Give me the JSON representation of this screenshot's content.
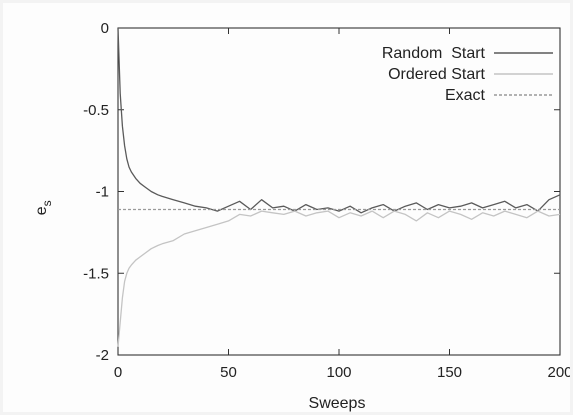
{
  "chart_data": {
    "type": "line",
    "title": "",
    "xlabel": "Sweeps",
    "ylabel": "e",
    "ylabel_subscript": "s",
    "xlim": [
      0,
      200
    ],
    "ylim": [
      -2,
      0
    ],
    "xticks": [
      0,
      50,
      100,
      150,
      200
    ],
    "xtick_labels": [
      "0",
      "50",
      "100",
      "150",
      "200"
    ],
    "yticks": [
      -2,
      -1.5,
      -1,
      -0.5,
      0
    ],
    "ytick_labels": [
      "-2",
      "-1.5",
      "-1",
      "-0.5",
      "0"
    ],
    "grid": false,
    "legend_position": "top-right",
    "series": [
      {
        "name": "Random  Start",
        "color": "#5a5a5a",
        "style": "solid",
        "x": [
          0,
          1,
          2,
          3,
          4,
          5,
          6,
          8,
          10,
          12,
          15,
          18,
          20,
          25,
          30,
          35,
          40,
          45,
          50,
          55,
          60,
          65,
          70,
          75,
          80,
          85,
          90,
          95,
          100,
          105,
          110,
          115,
          120,
          125,
          130,
          135,
          140,
          145,
          150,
          155,
          160,
          165,
          170,
          175,
          180,
          185,
          190,
          195,
          200
        ],
        "y": [
          0,
          -0.4,
          -0.6,
          -0.72,
          -0.8,
          -0.85,
          -0.88,
          -0.92,
          -0.95,
          -0.97,
          -1.0,
          -1.02,
          -1.03,
          -1.05,
          -1.07,
          -1.09,
          -1.1,
          -1.12,
          -1.09,
          -1.06,
          -1.11,
          -1.05,
          -1.1,
          -1.09,
          -1.12,
          -1.08,
          -1.11,
          -1.1,
          -1.12,
          -1.09,
          -1.13,
          -1.1,
          -1.08,
          -1.12,
          -1.09,
          -1.07,
          -1.11,
          -1.08,
          -1.1,
          -1.09,
          -1.07,
          -1.1,
          -1.08,
          -1.06,
          -1.1,
          -1.08,
          -1.12,
          -1.05,
          -1.02
        ]
      },
      {
        "name": "Ordered Start",
        "color": "#c4c4c4",
        "style": "solid",
        "x": [
          0,
          1,
          2,
          3,
          4,
          5,
          6,
          8,
          10,
          12,
          15,
          18,
          20,
          25,
          30,
          35,
          40,
          45,
          50,
          55,
          60,
          65,
          70,
          75,
          80,
          85,
          90,
          95,
          100,
          105,
          110,
          115,
          120,
          125,
          130,
          135,
          140,
          145,
          150,
          155,
          160,
          165,
          170,
          175,
          180,
          185,
          190,
          195,
          200
        ],
        "y": [
          -1.95,
          -1.8,
          -1.65,
          -1.55,
          -1.5,
          -1.47,
          -1.45,
          -1.42,
          -1.4,
          -1.38,
          -1.35,
          -1.33,
          -1.32,
          -1.3,
          -1.26,
          -1.24,
          -1.22,
          -1.2,
          -1.18,
          -1.14,
          -1.15,
          -1.12,
          -1.13,
          -1.14,
          -1.12,
          -1.15,
          -1.13,
          -1.12,
          -1.16,
          -1.13,
          -1.15,
          -1.12,
          -1.16,
          -1.12,
          -1.14,
          -1.18,
          -1.13,
          -1.16,
          -1.12,
          -1.14,
          -1.17,
          -1.13,
          -1.15,
          -1.12,
          -1.14,
          -1.16,
          -1.12,
          -1.15,
          -1.14
        ]
      },
      {
        "name": "Exact",
        "color": "#9a9a9a",
        "style": "dashed",
        "x": [
          0,
          200
        ],
        "y": [
          -1.11,
          -1.11
        ]
      }
    ]
  }
}
